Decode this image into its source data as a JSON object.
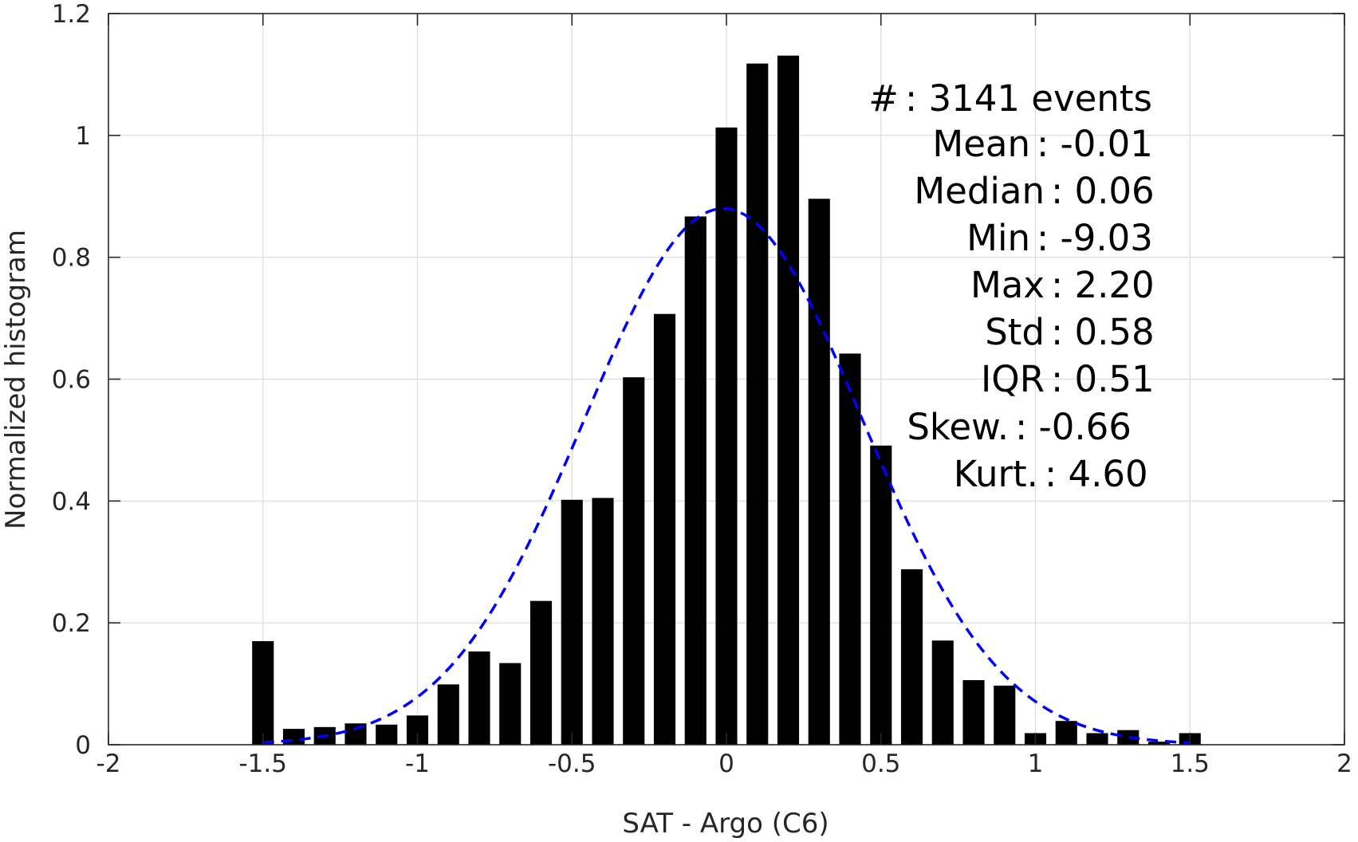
{
  "chart_data": {
    "type": "bar",
    "xlabel": "SAT - Argo (C6)",
    "ylabel": "Normalized histogram",
    "xlim": [
      -2,
      2
    ],
    "ylim": [
      0,
      1.2
    ],
    "xticks": [
      -2,
      -1.5,
      -1,
      -0.5,
      0,
      0.5,
      1,
      1.5,
      2
    ],
    "xtick_labels": [
      "-2",
      "-1.5",
      "-1",
      "-0.5",
      "0",
      "0.5",
      "1",
      "1.5",
      "2"
    ],
    "yticks": [
      0,
      0.2,
      0.4,
      0.6,
      0.8,
      1,
      1.2
    ],
    "ytick_labels": [
      "0",
      "0.2",
      "0.4",
      "0.6",
      "0.8",
      "1",
      "1.2"
    ],
    "grid": true,
    "bar_width": 0.07,
    "bins": [
      -1.5,
      -1.4,
      -1.3,
      -1.2,
      -1.1,
      -1.0,
      -0.9,
      -0.8,
      -0.7,
      -0.6,
      -0.5,
      -0.4,
      -0.3,
      -0.2,
      -0.1,
      0.0,
      0.1,
      0.2,
      0.3,
      0.4,
      0.5,
      0.6,
      0.7,
      0.8,
      0.9,
      1.0,
      1.1,
      1.2,
      1.3,
      1.4,
      1.5
    ],
    "values": [
      0.17,
      0.026,
      0.029,
      0.035,
      0.033,
      0.048,
      0.099,
      0.153,
      0.134,
      0.236,
      0.402,
      0.405,
      0.603,
      0.707,
      0.867,
      1.013,
      1.118,
      1.131,
      0.896,
      0.642,
      0.491,
      0.288,
      0.171,
      0.106,
      0.097,
      0.019,
      0.039,
      0.019,
      0.024,
      0.005,
      0.019
    ],
    "normal_fit": {
      "style": "dashed",
      "color": "#0000ff",
      "mean": -0.01,
      "std": 0.45,
      "peak": 0.88,
      "x_range": [
        -1.5,
        1.5
      ]
    },
    "annotations": [
      {
        "label": "#  ",
        "value": ": 3141 events"
      },
      {
        "label": "Mean ",
        "value": ": -0.01"
      },
      {
        "label": "Median ",
        "value": ": 0.06"
      },
      {
        "label": "Min ",
        "value": ": -9.03"
      },
      {
        "label": "Max ",
        "value": ": 2.20"
      },
      {
        "label": "Std ",
        "value": ": 0.58"
      },
      {
        "label": "IQR ",
        "value": ": 0.51"
      },
      {
        "label": "Skew. ",
        "value": ": -0.66"
      },
      {
        "label": "Kurt. ",
        "value": ": 4.60"
      }
    ]
  }
}
